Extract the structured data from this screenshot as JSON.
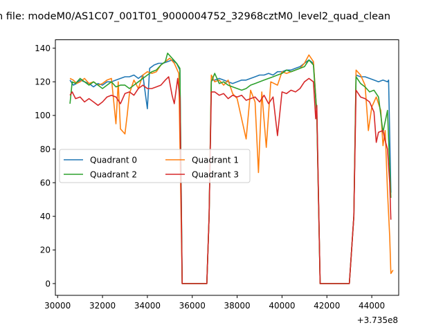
{
  "chart_data": {
    "type": "line",
    "title": "n file: modeM0/AS1C07_001T01_9000004752_32968cztM0_level2_quad_clean",
    "xlabel": "",
    "ylabel": "",
    "x_offset_label": "+3.735e8",
    "xlim": [
      29900,
      45200
    ],
    "ylim": [
      -7,
      145
    ],
    "x_ticks": [
      30000,
      32000,
      34000,
      36000,
      38000,
      40000,
      42000,
      44000
    ],
    "x_tick_labels": [
      "30000",
      "32000",
      "34000",
      "36000",
      "38000",
      "40000",
      "42000",
      "44000"
    ],
    "y_ticks": [
      0,
      20,
      40,
      60,
      80,
      100,
      120,
      140
    ],
    "y_tick_labels": [
      "0",
      "20",
      "40",
      "60",
      "80",
      "100",
      "120",
      "140"
    ],
    "grid": false,
    "legend": {
      "placement": "center-left",
      "columns": 2
    },
    "series": [
      {
        "name": "Quadrant 0",
        "color": "#1f77b4",
        "points": [
          [
            30550,
            121
          ],
          [
            30700,
            118
          ],
          [
            30850,
            119
          ],
          [
            31000,
            121
          ],
          [
            31200,
            120
          ],
          [
            31400,
            119
          ],
          [
            31600,
            117
          ],
          [
            31800,
            119
          ],
          [
            32000,
            118
          ],
          [
            32200,
            120
          ],
          [
            32400,
            120
          ],
          [
            32600,
            121
          ],
          [
            32800,
            122
          ],
          [
            33000,
            123
          ],
          [
            33200,
            123
          ],
          [
            33400,
            124
          ],
          [
            33600,
            122
          ],
          [
            33800,
            124
          ],
          [
            34000,
            104
          ],
          [
            34100,
            128
          ],
          [
            34300,
            130
          ],
          [
            34500,
            131
          ],
          [
            34700,
            131
          ],
          [
            34900,
            132
          ],
          [
            35100,
            133
          ],
          [
            35300,
            131
          ],
          [
            35450,
            127
          ],
          [
            35550,
            0
          ],
          [
            36100,
            0
          ],
          [
            36650,
            0
          ],
          [
            36750,
            40
          ],
          [
            36850,
            121
          ],
          [
            37000,
            121
          ],
          [
            37200,
            122
          ],
          [
            37400,
            121
          ],
          [
            37600,
            120
          ],
          [
            37800,
            119
          ],
          [
            38000,
            120
          ],
          [
            38200,
            121
          ],
          [
            38400,
            121
          ],
          [
            38600,
            122
          ],
          [
            38800,
            123
          ],
          [
            39000,
            124
          ],
          [
            39200,
            124
          ],
          [
            39400,
            125
          ],
          [
            39600,
            124
          ],
          [
            39800,
            126
          ],
          [
            40000,
            126
          ],
          [
            40200,
            127
          ],
          [
            40400,
            127
          ],
          [
            40600,
            128
          ],
          [
            40800,
            129
          ],
          [
            41000,
            131
          ],
          [
            41200,
            133
          ],
          [
            41400,
            131
          ],
          [
            41550,
            102
          ],
          [
            41700,
            0
          ],
          [
            42300,
            0
          ],
          [
            43000,
            0
          ],
          [
            43200,
            40
          ],
          [
            43300,
            124
          ],
          [
            43500,
            123
          ],
          [
            43700,
            123
          ],
          [
            43900,
            122
          ],
          [
            44100,
            121
          ],
          [
            44300,
            120
          ],
          [
            44500,
            121
          ],
          [
            44700,
            120
          ],
          [
            44750,
            121
          ],
          [
            44850,
            54
          ]
        ]
      },
      {
        "name": "Quadrant 1",
        "color": "#ff7f0e",
        "points": [
          [
            30550,
            122
          ],
          [
            30700,
            121
          ],
          [
            30850,
            119
          ],
          [
            31000,
            120
          ],
          [
            31200,
            122
          ],
          [
            31400,
            119
          ],
          [
            31600,
            120
          ],
          [
            31800,
            118
          ],
          [
            32000,
            119
          ],
          [
            32200,
            121
          ],
          [
            32400,
            122
          ],
          [
            32600,
            95
          ],
          [
            32700,
            120
          ],
          [
            32800,
            92
          ],
          [
            33000,
            89
          ],
          [
            33100,
            100
          ],
          [
            33200,
            113
          ],
          [
            33400,
            121
          ],
          [
            33600,
            116
          ],
          [
            33800,
            124
          ],
          [
            34000,
            126
          ],
          [
            34200,
            125
          ],
          [
            34400,
            126
          ],
          [
            34600,
            130
          ],
          [
            34800,
            132
          ],
          [
            35000,
            134
          ],
          [
            35200,
            131
          ],
          [
            35400,
            125
          ],
          [
            35550,
            0
          ],
          [
            36100,
            0
          ],
          [
            36650,
            0
          ],
          [
            36750,
            40
          ],
          [
            36850,
            124
          ],
          [
            37000,
            120
          ],
          [
            37200,
            121
          ],
          [
            37400,
            118
          ],
          [
            37600,
            121
          ],
          [
            37800,
            113
          ],
          [
            38000,
            110
          ],
          [
            38200,
            98
          ],
          [
            38400,
            86
          ],
          [
            38600,
            115
          ],
          [
            38800,
            108
          ],
          [
            38950,
            66
          ],
          [
            39100,
            114
          ],
          [
            39300,
            81
          ],
          [
            39500,
            120
          ],
          [
            39800,
            118
          ],
          [
            40000,
            126
          ],
          [
            40200,
            125
          ],
          [
            40400,
            126
          ],
          [
            40600,
            127
          ],
          [
            40800,
            128
          ],
          [
            41000,
            131
          ],
          [
            41200,
            136
          ],
          [
            41400,
            132
          ],
          [
            41550,
            101
          ],
          [
            41700,
            0
          ],
          [
            42300,
            0
          ],
          [
            43000,
            0
          ],
          [
            43200,
            40
          ],
          [
            43300,
            127
          ],
          [
            43500,
            124
          ],
          [
            43700,
            118
          ],
          [
            43850,
            91
          ],
          [
            44000,
            105
          ],
          [
            44200,
            111
          ],
          [
            44400,
            103
          ],
          [
            44500,
            82
          ],
          [
            44600,
            91
          ],
          [
            44700,
            55
          ],
          [
            44800,
            28
          ],
          [
            44850,
            6
          ],
          [
            44950,
            8
          ]
        ]
      },
      {
        "name": "Quadrant 2",
        "color": "#2ca02c",
        "points": [
          [
            30550,
            107
          ],
          [
            30650,
            120
          ],
          [
            30800,
            119
          ],
          [
            31000,
            122
          ],
          [
            31200,
            120
          ],
          [
            31400,
            118
          ],
          [
            31600,
            120
          ],
          [
            31800,
            118
          ],
          [
            32000,
            116
          ],
          [
            32200,
            118
          ],
          [
            32400,
            120
          ],
          [
            32600,
            117
          ],
          [
            32800,
            118
          ],
          [
            33000,
            118
          ],
          [
            33200,
            116
          ],
          [
            33400,
            118
          ],
          [
            33600,
            120
          ],
          [
            33800,
            122
          ],
          [
            34000,
            124
          ],
          [
            34200,
            126
          ],
          [
            34400,
            127
          ],
          [
            34600,
            130
          ],
          [
            34800,
            132
          ],
          [
            34900,
            137
          ],
          [
            35100,
            134
          ],
          [
            35300,
            131
          ],
          [
            35450,
            128
          ],
          [
            35550,
            0
          ],
          [
            36100,
            0
          ],
          [
            36650,
            0
          ],
          [
            36750,
            40
          ],
          [
            36850,
            120
          ],
          [
            37000,
            125
          ],
          [
            37200,
            119
          ],
          [
            37400,
            120
          ],
          [
            37600,
            118
          ],
          [
            37800,
            117
          ],
          [
            38000,
            116
          ],
          [
            38200,
            115
          ],
          [
            38400,
            116
          ],
          [
            38600,
            118
          ],
          [
            38800,
            119
          ],
          [
            39000,
            120
          ],
          [
            39200,
            121
          ],
          [
            39400,
            122
          ],
          [
            39600,
            123
          ],
          [
            39800,
            124
          ],
          [
            40000,
            125
          ],
          [
            40200,
            127
          ],
          [
            40400,
            126
          ],
          [
            40600,
            127
          ],
          [
            40800,
            128
          ],
          [
            41000,
            129
          ],
          [
            41200,
            133
          ],
          [
            41400,
            130
          ],
          [
            41550,
            100
          ],
          [
            41700,
            0
          ],
          [
            42300,
            0
          ],
          [
            43000,
            0
          ],
          [
            43200,
            40
          ],
          [
            43300,
            123
          ],
          [
            43500,
            119
          ],
          [
            43700,
            117
          ],
          [
            43900,
            114
          ],
          [
            44100,
            115
          ],
          [
            44300,
            111
          ],
          [
            44500,
            90
          ],
          [
            44700,
            103
          ],
          [
            44850,
            51
          ]
        ]
      },
      {
        "name": "Quadrant 3",
        "color": "#d62728",
        "points": [
          [
            30550,
            112
          ],
          [
            30650,
            114
          ],
          [
            30800,
            110
          ],
          [
            31000,
            111
          ],
          [
            31200,
            108
          ],
          [
            31400,
            110
          ],
          [
            31600,
            108
          ],
          [
            31800,
            106
          ],
          [
            32000,
            108
          ],
          [
            32200,
            111
          ],
          [
            32400,
            112
          ],
          [
            32600,
            111
          ],
          [
            32800,
            107
          ],
          [
            33000,
            113
          ],
          [
            33200,
            114
          ],
          [
            33400,
            112
          ],
          [
            33600,
            116
          ],
          [
            33800,
            118
          ],
          [
            34000,
            116
          ],
          [
            34200,
            116
          ],
          [
            34400,
            117
          ],
          [
            34600,
            118
          ],
          [
            34800,
            121
          ],
          [
            34950,
            123
          ],
          [
            35100,
            112
          ],
          [
            35200,
            107
          ],
          [
            35350,
            122
          ],
          [
            35450,
            110
          ],
          [
            35550,
            0
          ],
          [
            36100,
            0
          ],
          [
            36650,
            0
          ],
          [
            36750,
            40
          ],
          [
            36850,
            114
          ],
          [
            37000,
            114
          ],
          [
            37200,
            112
          ],
          [
            37400,
            113
          ],
          [
            37600,
            110
          ],
          [
            37800,
            112
          ],
          [
            38000,
            111
          ],
          [
            38200,
            112
          ],
          [
            38400,
            109
          ],
          [
            38600,
            110
          ],
          [
            38800,
            111
          ],
          [
            39000,
            108
          ],
          [
            39200,
            112
          ],
          [
            39400,
            107
          ],
          [
            39600,
            111
          ],
          [
            39800,
            88
          ],
          [
            40000,
            114
          ],
          [
            40200,
            113
          ],
          [
            40400,
            115
          ],
          [
            40600,
            114
          ],
          [
            40800,
            116
          ],
          [
            41000,
            120
          ],
          [
            41200,
            122
          ],
          [
            41400,
            120
          ],
          [
            41500,
            98
          ],
          [
            41550,
            106
          ],
          [
            41700,
            0
          ],
          [
            42300,
            0
          ],
          [
            43000,
            0
          ],
          [
            43200,
            40
          ],
          [
            43300,
            115
          ],
          [
            43500,
            111
          ],
          [
            43700,
            110
          ],
          [
            43900,
            108
          ],
          [
            44100,
            102
          ],
          [
            44200,
            84
          ],
          [
            44300,
            90
          ],
          [
            44500,
            91
          ],
          [
            44600,
            85
          ],
          [
            44700,
            80
          ],
          [
            44800,
            60
          ],
          [
            44850,
            38
          ]
        ]
      }
    ]
  }
}
